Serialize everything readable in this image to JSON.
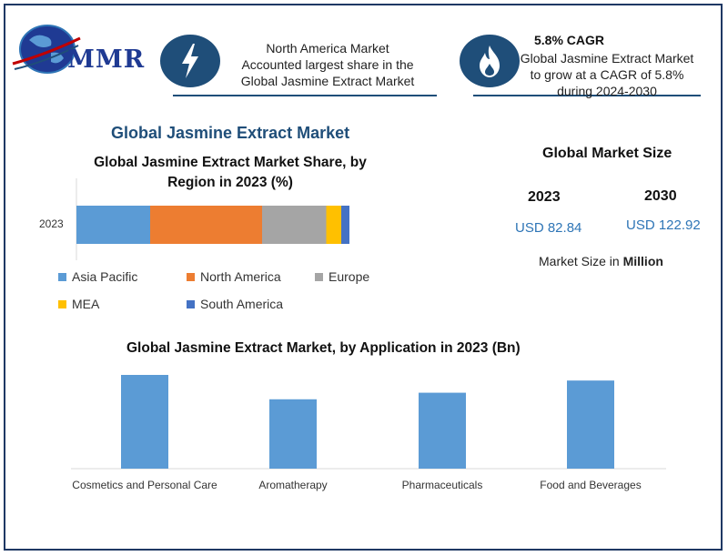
{
  "brand": {
    "logo_text": "MMR"
  },
  "info_left": {
    "icon": "lightning-bolt-icon",
    "text_line1": "North America Market",
    "text_line2": "Accounted largest share in the",
    "text_line3": "Global Jasmine Extract Market"
  },
  "info_right": {
    "icon": "flame-icon",
    "title": "5.8% CAGR",
    "text_line1": "Global Jasmine Extract Market",
    "text_line2": "to grow at a CAGR of 5.8%",
    "text_line3": "during 2024-2030"
  },
  "main_title": "Global Jasmine Extract Market",
  "market_size": {
    "title": "Global Market Size",
    "year_a": "2023",
    "value_a": "USD 82.84",
    "year_b": "2030",
    "value_b": "USD 122.92",
    "note_prefix": "Market Size in",
    "note_bold": "Million"
  },
  "colors": {
    "asia_pacific": "#5b9bd5",
    "north_america": "#ed7d31",
    "europe": "#a5a5a5",
    "mea": "#ffc000",
    "south_america": "#4472c4",
    "bar": "#5b9bd5",
    "accent": "#1f4e79"
  },
  "chart_data": [
    {
      "type": "bar",
      "orientation": "horizontal-stacked",
      "title": "Global Jasmine Extract Market Share, by Region in 2023 (%)",
      "categories": [
        "2023"
      ],
      "series": [
        {
          "name": "Asia Pacific",
          "values": [
            27
          ]
        },
        {
          "name": "North America",
          "values": [
            41
          ]
        },
        {
          "name": "Europe",
          "values": [
            23.5
          ]
        },
        {
          "name": "MEA",
          "values": [
            5.5
          ]
        },
        {
          "name": "South America",
          "values": [
            3
          ]
        }
      ],
      "xlim": [
        0,
        100
      ],
      "grid": false,
      "legend_position": "bottom"
    },
    {
      "type": "bar",
      "title": "Global Jasmine Extract Market, by Application in 2023 (Bn)",
      "categories": [
        "Cosmetics and Personal Care",
        "Aromatherapy",
        "Pharmaceuticals",
        "Food and Beverages"
      ],
      "values": [
        100,
        74,
        81,
        94
      ],
      "ylim": [
        0,
        100
      ],
      "grid": false
    }
  ]
}
